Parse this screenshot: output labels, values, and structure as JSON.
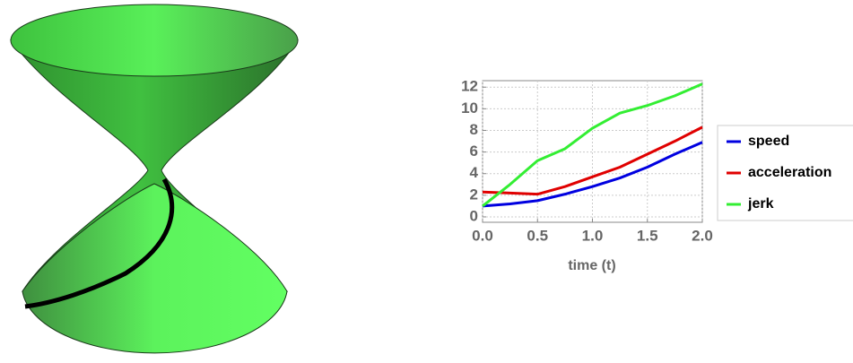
{
  "chart_data": {
    "type": "line",
    "xlabel": "time (t)",
    "x": [
      0,
      0.25,
      0.5,
      0.75,
      1,
      1.25,
      1.5,
      1.75,
      2
    ],
    "series": [
      {
        "name": "speed",
        "color": "#0000e0",
        "values": [
          1.0,
          1.2,
          1.5,
          2.1,
          2.8,
          3.6,
          4.6,
          5.8,
          6.9
        ]
      },
      {
        "name": "acceleration",
        "color": "#e00000",
        "values": [
          2.3,
          2.2,
          2.1,
          2.8,
          3.7,
          4.6,
          5.8,
          7.0,
          8.3
        ]
      },
      {
        "name": "jerk",
        "color": "#33ee33",
        "values": [
          1.0,
          3.0,
          5.2,
          6.3,
          8.2,
          9.6,
          10.3,
          11.2,
          12.3
        ]
      }
    ],
    "xlim": [
      0,
      2
    ],
    "ylim": [
      -0.5,
      12.6
    ],
    "xticks": [
      {
        "value": 0,
        "label": "0.0"
      },
      {
        "value": 0.5,
        "label": "0.5"
      },
      {
        "value": 1,
        "label": "1.0"
      },
      {
        "value": 1.5,
        "label": "1.5"
      },
      {
        "value": 2,
        "label": "2.0"
      }
    ],
    "yticks": [
      0,
      2,
      4,
      6,
      8,
      10,
      12
    ],
    "grid": true
  }
}
